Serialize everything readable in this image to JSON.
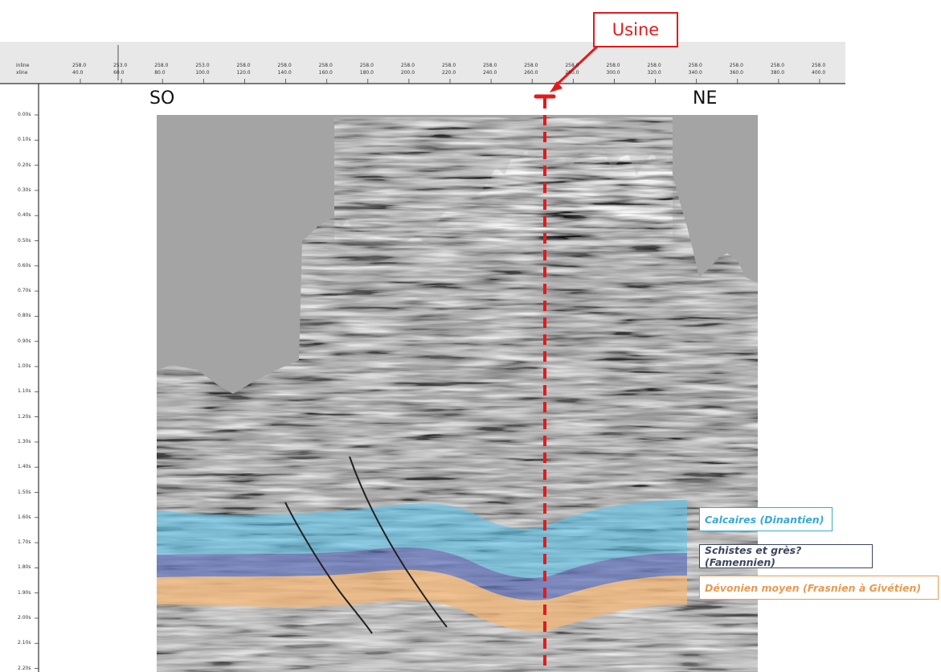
{
  "title": "",
  "direction_labels": {
    "left": "SO",
    "right": "NE"
  },
  "marker": {
    "label": "Usine",
    "color": "#e31a1c"
  },
  "header": {
    "row_labels": [
      "inline",
      "xline"
    ],
    "ticks": [
      {
        "top": "258.0",
        "bottom": "40.0"
      },
      {
        "top": "253.0",
        "bottom": "60.0"
      },
      {
        "top": "258.0",
        "bottom": "80.0"
      },
      {
        "top": "253.0",
        "bottom": "100.0"
      },
      {
        "top": "258.0",
        "bottom": "120.0"
      },
      {
        "top": "258.0",
        "bottom": "140.0"
      },
      {
        "top": "258.0",
        "bottom": "160.0"
      },
      {
        "top": "258.0",
        "bottom": "180.0"
      },
      {
        "top": "258.0",
        "bottom": "200.0"
      },
      {
        "top": "258.0",
        "bottom": "220.0"
      },
      {
        "top": "258.0",
        "bottom": "240.0"
      },
      {
        "top": "258.0",
        "bottom": "260.0"
      },
      {
        "top": "258.0",
        "bottom": "280.0"
      },
      {
        "top": "258.0",
        "bottom": "300.0"
      },
      {
        "top": "258.0",
        "bottom": "320.0"
      },
      {
        "top": "258.0",
        "bottom": "340.0"
      },
      {
        "top": "258.0",
        "bottom": "360.0"
      },
      {
        "top": "258.0",
        "bottom": "380.0"
      },
      {
        "top": "258.0",
        "bottom": "400.0"
      }
    ]
  },
  "time_axis": {
    "labels": [
      "0.00s",
      "0.10s",
      "0.20s",
      "0.30s",
      "0.40s",
      "0.50s",
      "0.60s",
      "0.70s",
      "0.80s",
      "0.90s",
      "1.00s",
      "1.10s",
      "1.20s",
      "1.30s",
      "1.40s",
      "1.50s",
      "1.60s",
      "1.70s",
      "1.80s",
      "1.90s",
      "2.00s",
      "2.10s",
      "2.20s"
    ]
  },
  "legend": [
    {
      "label": "Calcaires (Dinantien)",
      "color": "#38a8d8"
    },
    {
      "label": "Schistes et grès?(Famennien)",
      "color": "#3c4660"
    },
    {
      "label": "Dévonien moyen (Frasnien à Givétien)",
      "color": "#e89a50"
    }
  ]
}
